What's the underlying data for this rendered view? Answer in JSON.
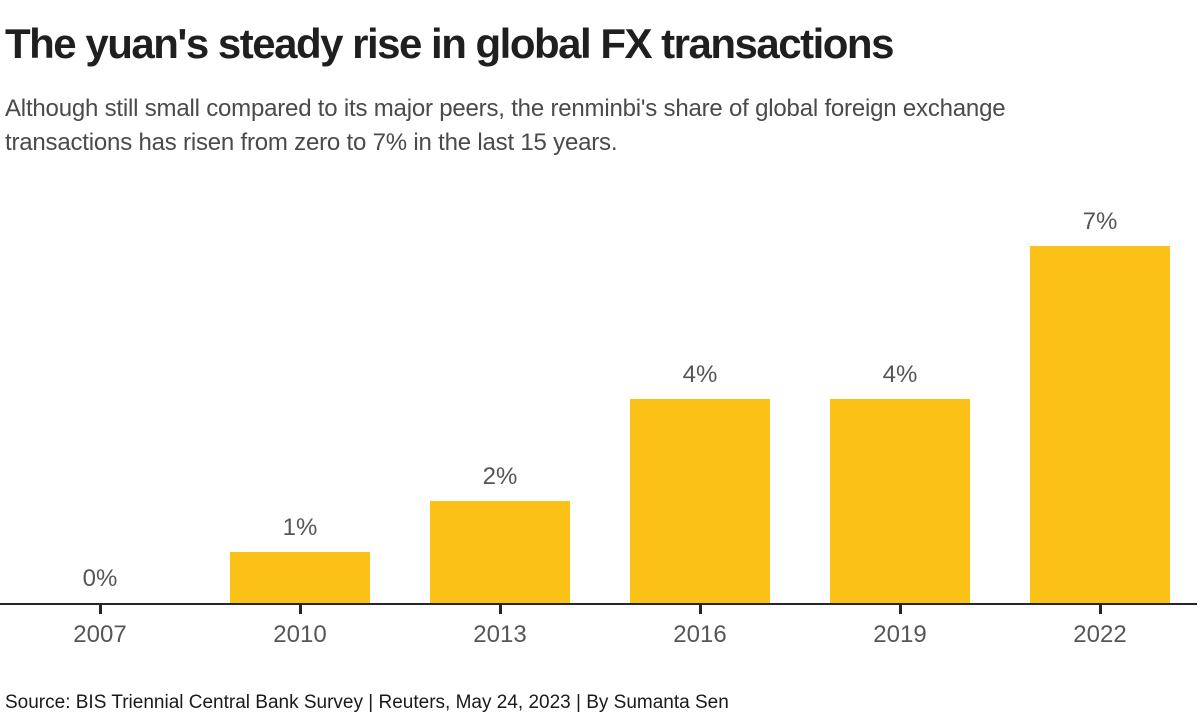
{
  "header": {
    "title": "The yuan's steady rise in global FX transactions",
    "subtitle_lines": [
      "Although still small compared to its major peers, the renminbi's share of global foreign exchange",
      "transactions has risen from zero to 7% in the last 15 years."
    ]
  },
  "chart_data": {
    "type": "bar",
    "categories": [
      "2007",
      "2010",
      "2013",
      "2016",
      "2019",
      "2022"
    ],
    "values": [
      0,
      1,
      2,
      4,
      4,
      7
    ],
    "labels": [
      "0%",
      "1%",
      "2%",
      "4%",
      "4%",
      "7%"
    ],
    "unit": "%",
    "ylim": [
      0,
      7
    ],
    "title": "The yuan's steady rise in global FX transactions",
    "xlabel": "",
    "ylabel": "",
    "grid": false,
    "legend": "none",
    "bar_color": "#FBC116",
    "axis_color": "#262626"
  },
  "footer": {
    "source": "Source: BIS Triennial Central Bank Survey | Reuters, May 24, 2023 | By Sumanta Sen"
  },
  "colors": {
    "background": "#FFFFFF",
    "bar": "#FBC116",
    "axis": "#262626",
    "title_text": "#1F1F1F",
    "subtitle_text": "#4A4A4A",
    "label_text": "#565656",
    "source_text": "#1A1A1A"
  }
}
